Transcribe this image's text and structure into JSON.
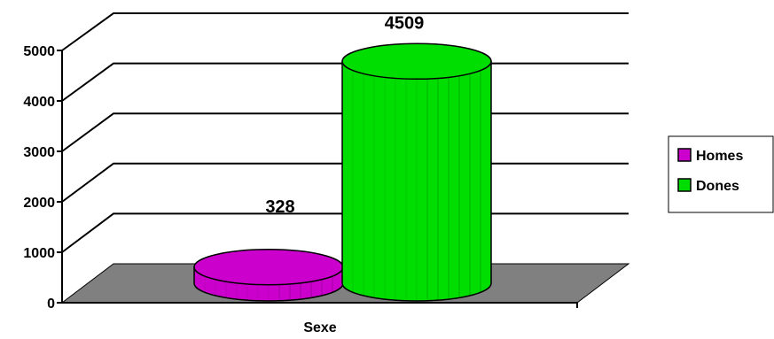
{
  "chart_data": {
    "type": "bar",
    "title": "",
    "xlabel": "Sexe",
    "ylabel": "",
    "ylim": [
      0,
      5000
    ],
    "yticks": [
      0,
      1000,
      2000,
      3000,
      4000,
      5000
    ],
    "grid": true,
    "legend_position": "right",
    "series": [
      {
        "name": "Homes",
        "values": [
          328
        ],
        "color": "#cc00cc"
      },
      {
        "name": "Dones",
        "values": [
          4509
        ],
        "color": "#00dd00"
      }
    ],
    "categories": [
      "Sexe"
    ],
    "data_labels": [
      "328",
      "4509"
    ],
    "floor_color": "#808080"
  }
}
